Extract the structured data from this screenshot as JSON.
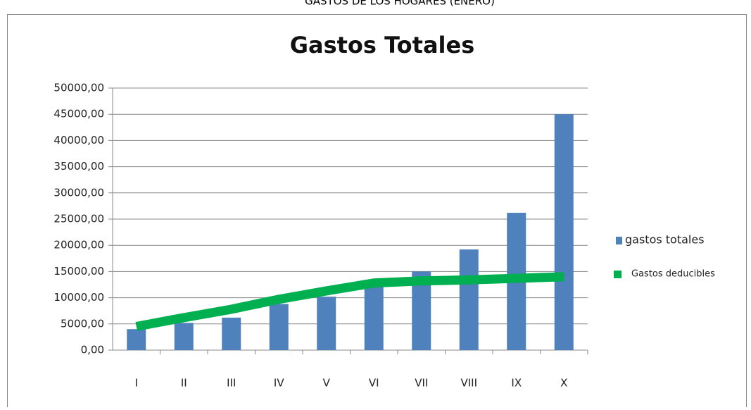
{
  "header": "GASTOS DE LOS HOGARES (ENERO)",
  "chart_data": {
    "type": "bar",
    "title": "Gastos Totales",
    "categories": [
      "I",
      "II",
      "III",
      "IV",
      "V",
      "VI",
      "VII",
      "VIII",
      "IX",
      "X"
    ],
    "series": [
      {
        "name": "gastos totales",
        "type": "bar",
        "color": "#4f81bd",
        "values": [
          4000,
          5200,
          6200,
          8800,
          10200,
          13000,
          15000,
          19200,
          26200,
          45000
        ]
      },
      {
        "name": "Gastos deducibles",
        "type": "line",
        "color": "#00b050",
        "values": [
          4500,
          6200,
          7800,
          9700,
          11300,
          12800,
          13200,
          13400,
          13700,
          14000
        ]
      }
    ],
    "ylim": [
      0,
      50000
    ],
    "yticks": [
      {
        "value": 0,
        "label": "0,00"
      },
      {
        "value": 5000,
        "label": "5000,00"
      },
      {
        "value": 10000,
        "label": "10000,00"
      },
      {
        "value": 15000,
        "label": "15000,00"
      },
      {
        "value": 20000,
        "label": "20000,00"
      },
      {
        "value": 25000,
        "label": "25000,00"
      },
      {
        "value": 30000,
        "label": "30000,00"
      },
      {
        "value": 35000,
        "label": "35000,00"
      },
      {
        "value": 40000,
        "label": "40000,00"
      },
      {
        "value": 45000,
        "label": "45000,00"
      },
      {
        "value": 50000,
        "label": "50000,00"
      }
    ],
    "grid": true,
    "legend": "right"
  }
}
